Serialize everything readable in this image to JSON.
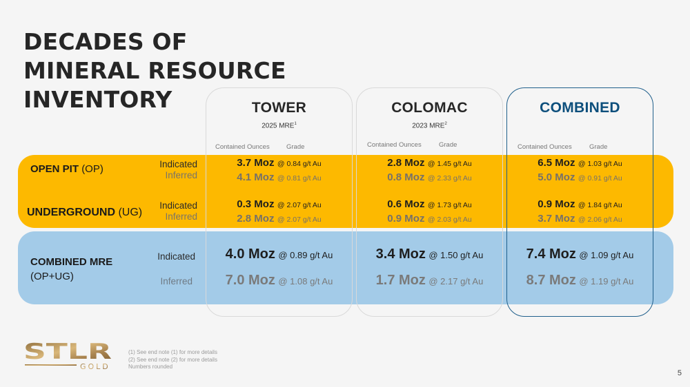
{
  "title": [
    "DECADES OF",
    "MINERAL RESOURCE",
    "INVENTORY"
  ],
  "columns": [
    {
      "name": "TOWER",
      "subtitle": "2025 MRE",
      "note": "1",
      "hdr_ounces": "Contained Ounces",
      "hdr_grade": "Grade"
    },
    {
      "name": "COLOMAC",
      "subtitle": "2023 MRE",
      "note": "2",
      "hdr_ounces": "Contained Ounces",
      "hdr_grade": "Grade"
    },
    {
      "name": "COMBINED",
      "subtitle": "",
      "note": "",
      "hdr_ounces": "Contained Ounces",
      "hdr_grade": "Grade"
    }
  ],
  "rows": {
    "open_pit": {
      "label_bold": "OPEN PIT",
      "label_abbr": "(OP)",
      "indicated_label": "Indicated",
      "inferred_label": "Inferred"
    },
    "underground": {
      "label_bold": "UNDERGROUND",
      "label_abbr": "(UG)",
      "indicated_label": "Indicated",
      "inferred_label": "Inferred"
    },
    "combined": {
      "label_bold": "COMBINED MRE",
      "label_abbr": "(OP+UG)",
      "indicated_label": "Indicated",
      "inferred_label": "Inferred"
    }
  },
  "values": {
    "tower": {
      "op_ind": {
        "moz": "3.7 Moz",
        "grade": "@ 0.84 g/t Au"
      },
      "op_inf": {
        "moz": "4.1 Moz",
        "grade": "@ 0.81 g/t Au"
      },
      "ug_ind": {
        "moz": "0.3 Moz",
        "grade": "@ 2.07 g/t Au"
      },
      "ug_inf": {
        "moz": "2.8 Moz",
        "grade": "@ 2.07 g/t Au"
      },
      "cm_ind": {
        "moz": "4.0 Moz",
        "grade": "@ 0.89 g/t Au"
      },
      "cm_inf": {
        "moz": "7.0 Moz",
        "grade": "@ 1.08 g/t Au"
      }
    },
    "colomac": {
      "op_ind": {
        "moz": "2.8 Moz",
        "grade": "@ 1.45 g/t Au"
      },
      "op_inf": {
        "moz": "0.8 Moz",
        "grade": "@ 2.33 g/t Au"
      },
      "ug_ind": {
        "moz": "0.6 Moz",
        "grade": "@ 1.73 g/t Au"
      },
      "ug_inf": {
        "moz": "0.9 Moz",
        "grade": "@ 2.03 g/t Au"
      },
      "cm_ind": {
        "moz": "3.4 Moz",
        "grade": "@ 1.50 g/t Au"
      },
      "cm_inf": {
        "moz": "1.7 Moz",
        "grade": "@ 2.17 g/t Au"
      }
    },
    "combined": {
      "op_ind": {
        "moz": "6.5 Moz",
        "grade": "@ 1.03 g/t Au"
      },
      "op_inf": {
        "moz": "5.0 Moz",
        "grade": "@ 0.91 g/t Au"
      },
      "ug_ind": {
        "moz": "0.9 Moz",
        "grade": "@ 1.84 g/t Au"
      },
      "ug_inf": {
        "moz": "3.7 Moz",
        "grade": "@ 2.06 g/t Au"
      },
      "cm_ind": {
        "moz": "7.4 Moz",
        "grade": "@ 1.09 g/t Au"
      },
      "cm_inf": {
        "moz": "8.7 Moz",
        "grade": "@ 1.19 g/t Au"
      }
    }
  },
  "footer": {
    "logo_text": "STLR",
    "logo_sub": "GOLD",
    "notes": [
      "(1) See end note (1) for more details",
      "(2) See end note (2) for more details",
      "Numbers rounded"
    ],
    "page_number": "5"
  },
  "colors": {
    "open_pit_band": "#fdb900",
    "combined_band": "#a3cbe8",
    "combined_accent": "#0d4f7c",
    "logo_gold": "#b8925a"
  }
}
